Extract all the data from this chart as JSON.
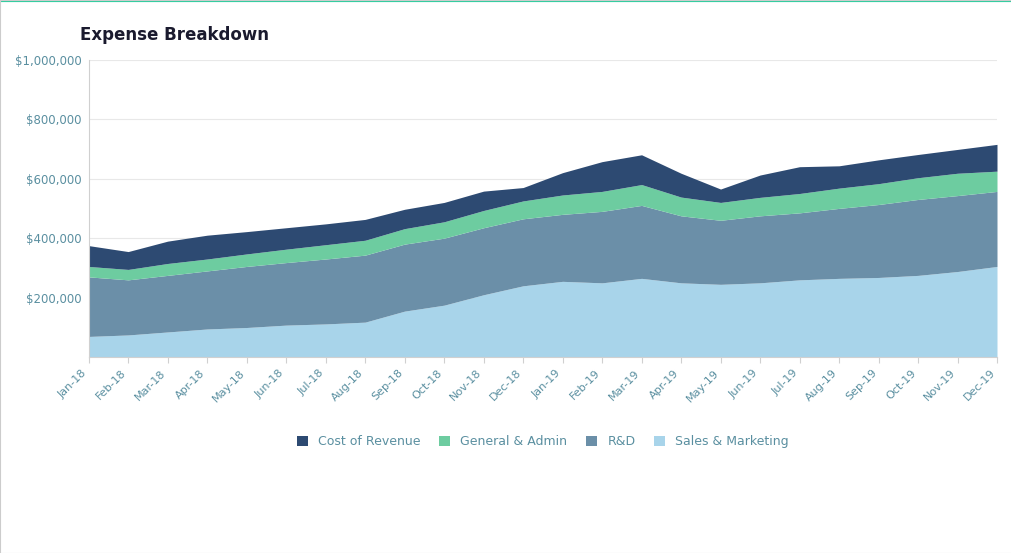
{
  "title": "Expense Breakdown",
  "title_fontsize": 12,
  "title_color": "#1a1a2e",
  "background_color": "#ffffff",
  "border_color": "#2ecc9e",
  "labels": [
    "Jan-18",
    "Feb-18",
    "Mar-18",
    "Apr-18",
    "May-18",
    "Jun-18",
    "Jul-18",
    "Aug-18",
    "Sep-18",
    "Oct-18",
    "Nov-18",
    "Dec-18",
    "Jan-19",
    "Feb-19",
    "Mar-19",
    "Apr-19",
    "May-19",
    "Jun-19",
    "Jul-19",
    "Aug-19",
    "Sep-19",
    "Oct-19",
    "Nov-19",
    "Dec-19"
  ],
  "series": {
    "Sales & Marketing": [
      70000,
      75000,
      85000,
      95000,
      100000,
      108000,
      112000,
      118000,
      155000,
      175000,
      210000,
      240000,
      255000,
      250000,
      265000,
      250000,
      245000,
      250000,
      260000,
      265000,
      268000,
      275000,
      288000,
      305000
    ],
    "R&D": [
      200000,
      185000,
      190000,
      195000,
      205000,
      210000,
      218000,
      225000,
      225000,
      225000,
      225000,
      225000,
      225000,
      240000,
      245000,
      225000,
      215000,
      225000,
      225000,
      235000,
      245000,
      255000,
      255000,
      252000
    ],
    "General & Admin": [
      35000,
      35000,
      40000,
      40000,
      42000,
      45000,
      48000,
      50000,
      52000,
      55000,
      58000,
      60000,
      65000,
      67000,
      70000,
      63000,
      60000,
      62000,
      65000,
      68000,
      70000,
      73000,
      75000,
      68000
    ],
    "Cost of Revenue": [
      70000,
      60000,
      75000,
      80000,
      75000,
      72000,
      70000,
      70000,
      65000,
      65000,
      65000,
      45000,
      75000,
      100000,
      100000,
      80000,
      45000,
      75000,
      90000,
      75000,
      80000,
      78000,
      80000,
      90000
    ]
  },
  "colors": {
    "Sales & Marketing": "#a8d4ea",
    "R&D": "#6b8fa8",
    "General & Admin": "#6dcca0",
    "Cost of Revenue": "#2d4a72"
  },
  "ylim": [
    0,
    1000000
  ],
  "yticks": [
    200000,
    400000,
    600000,
    800000,
    1000000
  ],
  "legend_order": [
    "Cost of Revenue",
    "General & Admin",
    "R&D",
    "Sales & Marketing"
  ],
  "axis_color": "#d0d0d0",
  "tick_color": "#5a8fa0",
  "grid_color": "#e8e8e8"
}
